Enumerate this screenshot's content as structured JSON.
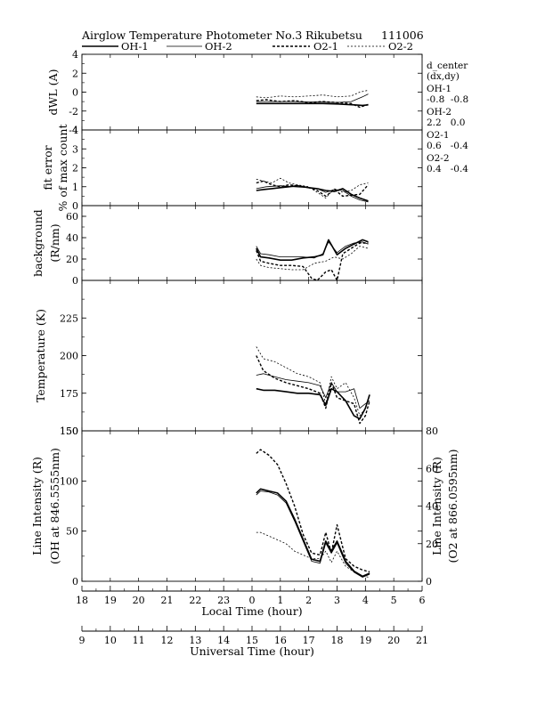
{
  "header": {
    "title": "Airglow Temperature Photometer No.3",
    "site": "Rikubetsu",
    "date": "111006"
  },
  "legend": [
    {
      "label": "OH-1",
      "style": "solid-bold"
    },
    {
      "label": "OH-2",
      "style": "solid-thin"
    },
    {
      "label": "O2-1",
      "style": "dashed-bold"
    },
    {
      "label": "O2-2",
      "style": "dashed-thin"
    }
  ],
  "annotation": {
    "heading": "d_center",
    "subheading": "(dx,dy)",
    "entries": [
      {
        "label": "OH-1",
        "value": "-0.8  -0.8"
      },
      {
        "label": "OH-2",
        "value": "2.2   0.0"
      },
      {
        "label": "O2-1",
        "value": "0.6   -0.4"
      },
      {
        "label": "O2-2",
        "value": "0.4   -0.4"
      }
    ]
  },
  "colors": {
    "line": "#000000",
    "background": "#ffffff"
  },
  "chart_data": {
    "type": "line",
    "x_axes": [
      {
        "label": "Local Time (hour)",
        "ticks": [
          "18",
          "19",
          "20",
          "21",
          "22",
          "23",
          "0",
          "1",
          "2",
          "3",
          "4",
          "5",
          "6"
        ]
      },
      {
        "label": "Universal Time (hour)",
        "ticks": [
          "9",
          "10",
          "11",
          "12",
          "13",
          "14",
          "15",
          "16",
          "17",
          "18",
          "19",
          "20",
          "21"
        ]
      }
    ],
    "xlim_ut": [
      9,
      21
    ],
    "grid": false,
    "panels": [
      {
        "id": "dwl",
        "ylabel": [
          "dWL (A)"
        ],
        "ylim": [
          -4,
          4
        ],
        "yticks": [
          "-4",
          "-2",
          "0",
          "2",
          "4"
        ],
        "series": [
          {
            "name": "OH-1",
            "x": [
              15.15,
              15.5,
              16,
              16.5,
              17,
              17.5,
              18,
              18.3,
              18.6,
              18.9,
              19.1
            ],
            "y": [
              -1.2,
              -1.2,
              -1.2,
              -1.2,
              -1.2,
              -1.2,
              -1.25,
              -1.3,
              -1.35,
              -1.4,
              -1.35
            ]
          },
          {
            "name": "OH-2",
            "x": [
              15.15,
              15.5,
              16,
              16.5,
              17,
              17.5,
              18,
              18.5,
              18.9,
              19.1
            ],
            "y": [
              -1.0,
              -1.0,
              -1.0,
              -1.0,
              -1.05,
              -1.05,
              -1.1,
              -1.0,
              -0.5,
              -0.2
            ]
          },
          {
            "name": "O2-1",
            "x": [
              15.15,
              15.5,
              16,
              16.5,
              17,
              17.5,
              18,
              18.5,
              18.8,
              19.1
            ],
            "y": [
              -0.9,
              -0.8,
              -1.0,
              -0.9,
              -1.1,
              -1.0,
              -1.1,
              -1.2,
              -1.6,
              -1.3
            ]
          },
          {
            "name": "O2-2",
            "x": [
              15.15,
              15.5,
              16,
              16.5,
              17,
              17.5,
              18,
              18.5,
              18.8,
              19.1
            ],
            "y": [
              -0.5,
              -0.6,
              -0.4,
              -0.5,
              -0.4,
              -0.3,
              -0.5,
              -0.4,
              0.0,
              0.2
            ]
          }
        ]
      },
      {
        "id": "fit",
        "ylabel": [
          "fit error",
          "% of max count"
        ],
        "ylim": [
          0,
          4
        ],
        "yticks": [
          "0",
          "1",
          "2",
          "3",
          "4"
        ],
        "series": [
          {
            "name": "OH-1",
            "x": [
              15.15,
              15.4,
              15.7,
              16,
              16.3,
              16.6,
              17,
              17.3,
              17.6,
              17.9,
              18.2,
              18.5,
              18.8,
              19.1
            ],
            "y": [
              0.8,
              0.85,
              0.9,
              0.95,
              1.0,
              1.05,
              0.95,
              0.9,
              0.8,
              0.75,
              0.9,
              0.6,
              0.4,
              0.25
            ]
          },
          {
            "name": "OH-2",
            "x": [
              15.15,
              15.5,
              16,
              16.5,
              17,
              17.3,
              17.6,
              17.9,
              18.2,
              18.5,
              18.8,
              19.1
            ],
            "y": [
              0.9,
              1.0,
              1.05,
              1.0,
              0.95,
              0.9,
              0.7,
              0.85,
              0.8,
              0.5,
              0.3,
              0.2
            ]
          },
          {
            "name": "O2-1",
            "x": [
              15.15,
              15.4,
              15.7,
              16,
              16.3,
              16.6,
              17,
              17.3,
              17.6,
              17.9,
              18.2,
              18.5,
              18.8,
              19.1
            ],
            "y": [
              1.2,
              1.3,
              1.1,
              1.0,
              1.1,
              1.05,
              0.95,
              0.8,
              0.5,
              0.85,
              0.5,
              0.55,
              0.6,
              1.1
            ]
          },
          {
            "name": "O2-2",
            "x": [
              15.15,
              15.4,
              15.7,
              16,
              16.3,
              16.6,
              17,
              17.3,
              17.6,
              17.9,
              18.2,
              18.5,
              18.8,
              19.1
            ],
            "y": [
              1.4,
              1.3,
              1.2,
              1.45,
              1.2,
              1.1,
              1.0,
              0.7,
              0.4,
              0.9,
              0.7,
              0.8,
              1.1,
              1.2
            ]
          }
        ]
      },
      {
        "id": "bg",
        "ylabel": [
          "background",
          "(R/nm)"
        ],
        "ylim": [
          0,
          70
        ],
        "yticks": [
          "0",
          "20",
          "40",
          "60"
        ],
        "series": [
          {
            "name": "OH-1",
            "x": [
              15.15,
              15.3,
              15.6,
              16,
              16.4,
              16.8,
              17.2,
              17.5,
              17.7,
              18,
              18.3,
              18.6,
              18.9,
              19.1
            ],
            "y": [
              30,
              22,
              21,
              19,
              19,
              21,
              22,
              24,
              38,
              24,
              30,
              34,
              38,
              36
            ]
          },
          {
            "name": "OH-2",
            "x": [
              15.15,
              15.3,
              15.6,
              16,
              16.4,
              16.8,
              17.2,
              17.5,
              17.7,
              18,
              18.3,
              18.6,
              18.9,
              19.1
            ],
            "y": [
              32,
              25,
              24,
              22,
              22,
              22,
              21,
              25,
              36,
              26,
              32,
              35,
              36,
              34
            ]
          },
          {
            "name": "O2-1",
            "x": [
              15.15,
              15.3,
              15.6,
              16,
              16.4,
              16.8,
              17.1,
              17.3,
              17.6,
              17.8,
              18,
              18.2,
              18.5,
              18.8,
              19.1
            ],
            "y": [
              28,
              18,
              16,
              14,
              14,
              13,
              2,
              0,
              8,
              10,
              0,
              25,
              30,
              35,
              35
            ]
          },
          {
            "name": "O2-2",
            "x": [
              15.15,
              15.3,
              15.6,
              16,
              16.4,
              16.8,
              17.2,
              17.6,
              17.9,
              18.2,
              18.5,
              18.8,
              19.1
            ],
            "y": [
              20,
              14,
              12,
              11,
              10,
              10,
              16,
              18,
              22,
              20,
              25,
              32,
              30
            ]
          }
        ]
      },
      {
        "id": "temp",
        "ylabel": [
          "Temperature (K)"
        ],
        "ylim": [
          150,
          250
        ],
        "yticks": [
          "150",
          "175",
          "200",
          "225"
        ],
        "series": [
          {
            "name": "OH-1",
            "x": [
              15.15,
              15.4,
              15.8,
              16.2,
              16.6,
              17,
              17.4,
              17.6,
              17.8,
              18,
              18.3,
              18.6,
              18.8,
              19,
              19.15
            ],
            "y": [
              178,
              177,
              177,
              176,
              175,
              175,
              174,
              167,
              178,
              176,
              170,
              160,
              158,
              165,
              174
            ]
          },
          {
            "name": "OH-2",
            "x": [
              15.15,
              15.4,
              15.8,
              16.2,
              16.6,
              17,
              17.4,
              17.6,
              17.8,
              18,
              18.3,
              18.6,
              18.8,
              19,
              19.15
            ],
            "y": [
              187,
              188,
              186,
              184,
              183,
              182,
              180,
              172,
              182,
              176,
              176,
              178,
              165,
              168,
              170
            ]
          },
          {
            "name": "O2-1",
            "x": [
              15.15,
              15.4,
              15.8,
              16.2,
              16.6,
              17,
              17.4,
              17.6,
              17.8,
              18,
              18.3,
              18.6,
              18.8,
              19,
              19.15
            ],
            "y": [
              200,
              190,
              185,
              182,
              180,
              178,
              175,
              165,
              182,
              172,
              170,
              168,
              155,
              160,
              170
            ]
          },
          {
            "name": "O2-2",
            "x": [
              15.15,
              15.4,
              15.8,
              16.2,
              16.6,
              17,
              17.4,
              17.6,
              17.8,
              18,
              18.3,
              18.6,
              18.8,
              19,
              19.15
            ],
            "y": [
              206,
              198,
              196,
              192,
              188,
              186,
              182,
              168,
              186,
              178,
              182,
              172,
              160,
              165,
              175
            ]
          }
        ]
      },
      {
        "id": "intensity",
        "ylabel": [
          "Line Intensity (R)",
          "(OH at 846.5555nm)"
        ],
        "ylim": [
          0,
          150
        ],
        "yticks": [
          "0",
          "50",
          "100",
          "150"
        ],
        "ylabel_right": [
          "Line Intensity (R)",
          "(O2 at 866.0595nm)"
        ],
        "ylim_right": [
          0,
          80
        ],
        "yticks_right": [
          "0",
          "20",
          "40",
          "60",
          "80"
        ],
        "series": [
          {
            "name": "OH-1",
            "axis": "left",
            "x": [
              15.15,
              15.3,
              15.6,
              15.9,
              16.2,
              16.5,
              16.8,
              17.1,
              17.4,
              17.6,
              17.8,
              18,
              18.3,
              18.6,
              18.9,
              19.15
            ],
            "y": [
              88,
              92,
              90,
              88,
              80,
              62,
              42,
              22,
              20,
              40,
              30,
              40,
              20,
              10,
              5,
              8
            ]
          },
          {
            "name": "OH-2",
            "axis": "left",
            "x": [
              15.15,
              15.3,
              15.6,
              15.9,
              16.2,
              16.5,
              16.8,
              17.1,
              17.4,
              17.6,
              17.8,
              18,
              18.3,
              18.6,
              18.9,
              19.15
            ],
            "y": [
              86,
              90,
              89,
              86,
              78,
              60,
              40,
              20,
              18,
              38,
              28,
              38,
              18,
              9,
              4,
              7
            ]
          },
          {
            "name": "O2-1",
            "axis": "right",
            "x": [
              15.15,
              15.3,
              15.6,
              15.9,
              16.2,
              16.5,
              16.8,
              17.1,
              17.4,
              17.6,
              17.8,
              18,
              18.3,
              18.6,
              18.9,
              19.15
            ],
            "y": [
              68,
              70,
              67,
              62,
              52,
              40,
              25,
              15,
              14,
              26,
              15,
              30,
              12,
              8,
              6,
              5
            ]
          },
          {
            "name": "O2-2",
            "axis": "right",
            "x": [
              15.15,
              15.3,
              15.6,
              15.9,
              16.2,
              16.5,
              16.8,
              17.1,
              17.4,
              17.6,
              17.8,
              18,
              18.3,
              18.6,
              18.9,
              19.15
            ],
            "y": [
              26,
              26,
              24,
              22,
              20,
              16,
              14,
              12,
              12,
              16,
              10,
              16,
              8,
              5,
              3,
              2
            ]
          }
        ]
      }
    ]
  }
}
